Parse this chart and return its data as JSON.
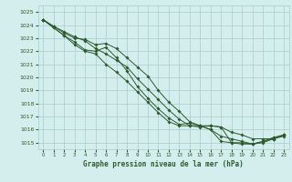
{
  "xlabel": "Graphe pression niveau de la mer (hPa)",
  "ylim": [
    1014.5,
    1025.5
  ],
  "xlim": [
    -0.5,
    23.5
  ],
  "yticks": [
    1015,
    1016,
    1017,
    1018,
    1019,
    1020,
    1021,
    1022,
    1023,
    1024,
    1025
  ],
  "xticks": [
    0,
    1,
    2,
    3,
    4,
    5,
    6,
    7,
    8,
    9,
    10,
    11,
    12,
    13,
    14,
    15,
    16,
    17,
    18,
    19,
    20,
    21,
    22,
    23
  ],
  "background_color": "#d4eeee",
  "grid_color": "#a8cccc",
  "line_color": "#2d5a2d",
  "lines": [
    [
      1024.4,
      1023.9,
      1023.5,
      1023.1,
      1022.8,
      1022.2,
      1021.8,
      1021.3,
      1020.8,
      1019.9,
      1019.1,
      1018.3,
      1017.5,
      1016.8,
      1016.3,
      1016.2,
      1016.3,
      1016.2,
      1015.0,
      1014.9,
      1014.9,
      1015.1,
      1015.3,
      1015.5
    ],
    [
      1024.4,
      1023.9,
      1023.4,
      1023.0,
      1022.9,
      1022.5,
      1022.6,
      1022.2,
      1021.5,
      1020.8,
      1020.1,
      1019.0,
      1018.1,
      1017.4,
      1016.6,
      1016.3,
      1016.3,
      1016.2,
      1015.8,
      1015.6,
      1015.3,
      1015.3,
      1015.3,
      1015.6
    ],
    [
      1024.4,
      1023.8,
      1023.2,
      1022.7,
      1022.1,
      1022.0,
      1022.3,
      1021.5,
      1020.5,
      1019.3,
      1018.4,
      1017.6,
      1016.9,
      1016.4,
      1016.5,
      1016.3,
      1016.0,
      1015.1,
      1015.0,
      1015.0,
      1014.9,
      1015.0,
      1015.3,
      1015.6
    ],
    [
      1024.4,
      1023.8,
      1023.2,
      1022.5,
      1022.0,
      1021.8,
      1021.0,
      1020.4,
      1019.7,
      1018.9,
      1018.1,
      1017.3,
      1016.6,
      1016.3,
      1016.3,
      1016.3,
      1016.0,
      1015.5,
      1015.3,
      1015.1,
      1014.9,
      1015.1,
      1015.4,
      1015.6
    ]
  ]
}
